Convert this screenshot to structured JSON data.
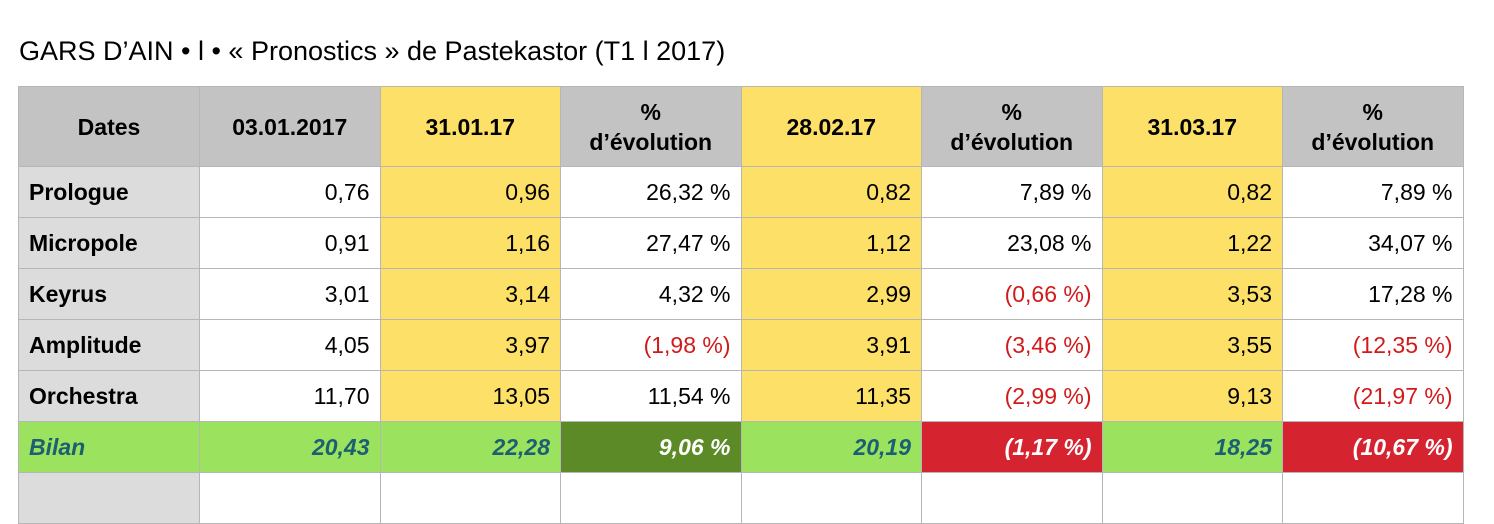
{
  "title": "GARS D’AIN • l • « Pronostics » de Pastekastor (T1 l 2017)",
  "header": {
    "dates": "Dates",
    "d0": "03.01.2017",
    "d1": "31.01.17",
    "e1": "%\nd’évolution",
    "d2": "28.02.17",
    "e2": "%\nd’évolution",
    "d3": "31.03.17",
    "e3": "%\nd’évolution"
  },
  "rows": [
    {
      "name": "Prologue",
      "v0": "0,76",
      "v1": "0,96",
      "e1": "26,32 %",
      "v2": "0,82",
      "e2": "7,89 %",
      "v3": "0,82",
      "e3": "7,89 %"
    },
    {
      "name": "Micropole",
      "v0": "0,91",
      "v1": "1,16",
      "e1": "27,47 %",
      "v2": "1,12",
      "e2": "23,08 %",
      "v3": "1,22",
      "e3": "34,07 %"
    },
    {
      "name": "Keyrus",
      "v0": "3,01",
      "v1": "3,14",
      "e1": "4,32 %",
      "v2": "2,99",
      "e2": "(0,66 %)",
      "v3": "3,53",
      "e3": "17,28 %"
    },
    {
      "name": "Amplitude",
      "v0": "4,05",
      "v1": "3,97",
      "e1": "(1,98 %)",
      "v2": "3,91",
      "e2": "(3,46 %)",
      "v3": "3,55",
      "e3": "(12,35 %)"
    },
    {
      "name": "Orchestra",
      "v0": "11,70",
      "v1": "13,05",
      "e1": "11,54 %",
      "v2": "11,35",
      "e2": "(2,99 %)",
      "v3": "9,13",
      "e3": "(21,97 %)"
    }
  ],
  "bilan": {
    "name": "Bilan",
    "v0": "20,43",
    "v1": "22,28",
    "e1": "9,06 %",
    "v2": "20,19",
    "e2": "(1,17 %)",
    "v3": "18,25",
    "e3": "(10,67 %)"
  },
  "colors": {
    "yellow": "#fde068",
    "header_gray": "#c3c3c3",
    "label_gray": "#dcdcdc",
    "green": "#9be35e",
    "dark_green": "#5b8a26",
    "red_cell": "#d52330",
    "negative_text": "#d21a1a",
    "bilan_text": "#1c5e72"
  }
}
